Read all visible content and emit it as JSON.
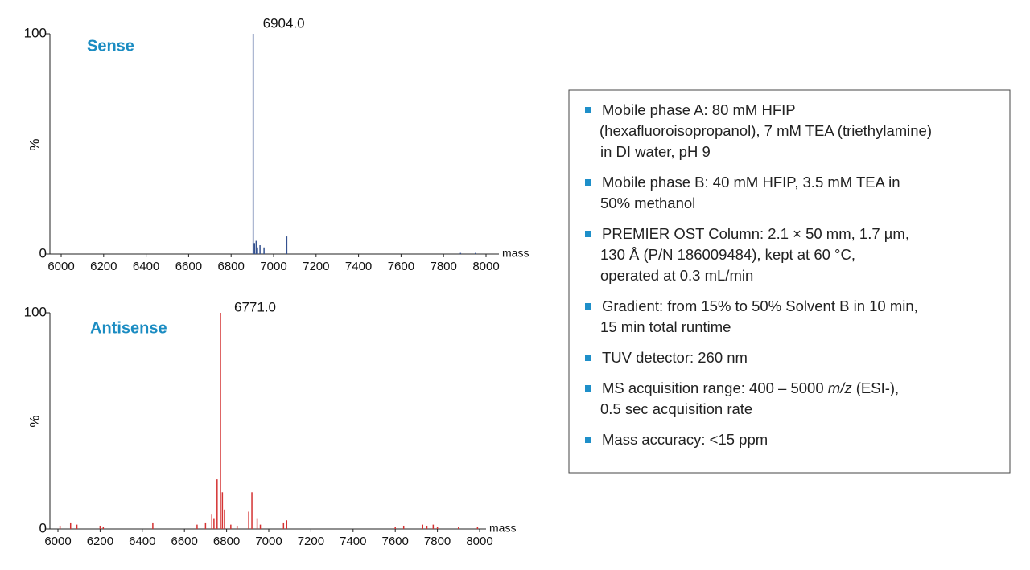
{
  "chart_data": [
    {
      "type": "spectrum",
      "title": "Sense",
      "annotation": "6904.0",
      "x_label": "mass",
      "y_label": "%",
      "color": "#34518f",
      "x": [
        6904,
        6910,
        6918,
        6924,
        6936,
        6955,
        7062,
        7880,
        7950
      ],
      "values": [
        100,
        5,
        6,
        3,
        4,
        3,
        8,
        0.5,
        0.5
      ],
      "xlim": [
        6000,
        8000
      ],
      "xticks": [
        6000,
        6200,
        6400,
        6600,
        6800,
        7000,
        7200,
        7400,
        7600,
        7800,
        8000
      ],
      "ylim": [
        0,
        100
      ],
      "yticks": [
        0,
        100
      ]
    },
    {
      "type": "spectrum",
      "title": "Antisense",
      "annotation": "6771.0",
      "x_label": "mass",
      "y_label": "%",
      "color": "#d43232",
      "x": [
        6010,
        6060,
        6090,
        6200,
        6215,
        6450,
        6660,
        6700,
        6730,
        6740,
        6755,
        6771,
        6780,
        6790,
        6820,
        6850,
        6905,
        6920,
        6945,
        6960,
        7070,
        7085,
        7600,
        7640,
        7730,
        7750,
        7780,
        7800,
        7900,
        7990
      ],
      "values": [
        1.5,
        3,
        2,
        1.5,
        1,
        3,
        2,
        3,
        7,
        5,
        23,
        100,
        17,
        9,
        2,
        1.5,
        8,
        17,
        5,
        2,
        3,
        4,
        1,
        1.5,
        2,
        1.5,
        2,
        1,
        1,
        1
      ],
      "xlim": [
        6000,
        8000
      ],
      "xticks": [
        6000,
        6200,
        6400,
        6600,
        6800,
        7000,
        7200,
        7400,
        7600,
        7800,
        8000
      ],
      "ylim": [
        0,
        100
      ],
      "yticks": [
        0,
        100
      ]
    }
  ],
  "conditions": [
    [
      [
        "Mobile phase A: 80 mM HFIP"
      ],
      [
        "(hexafluoroisopropanol), 7 mM TEA (triethylamine)"
      ],
      [
        "in DI water, pH 9"
      ]
    ],
    [
      [
        "Mobile phase B: 40 mM HFIP, 3.5 mM TEA in"
      ],
      [
        "50% methanol"
      ]
    ],
    [
      [
        "PREMIER OST Column: 2.1 × 50 mm, 1.7 µm,"
      ],
      [
        "130 Å (P/N 186009484), kept at 60 °C,"
      ],
      [
        "operated at 0.3 mL/min"
      ]
    ],
    [
      [
        "Gradient: from 15% to 50% Solvent B in 10 min,"
      ],
      [
        "15 min total runtime"
      ]
    ],
    [
      [
        "TUV detector: 260 nm"
      ]
    ],
    [
      [
        "MS acquisition range: 400 – 5000 ",
        {
          "text": "m/z",
          "style": "italic"
        },
        " (ESI-),"
      ],
      [
        "0.5 sec acquisition rate"
      ]
    ],
    [
      [
        "Mass accuracy: <15 ppm"
      ]
    ]
  ]
}
